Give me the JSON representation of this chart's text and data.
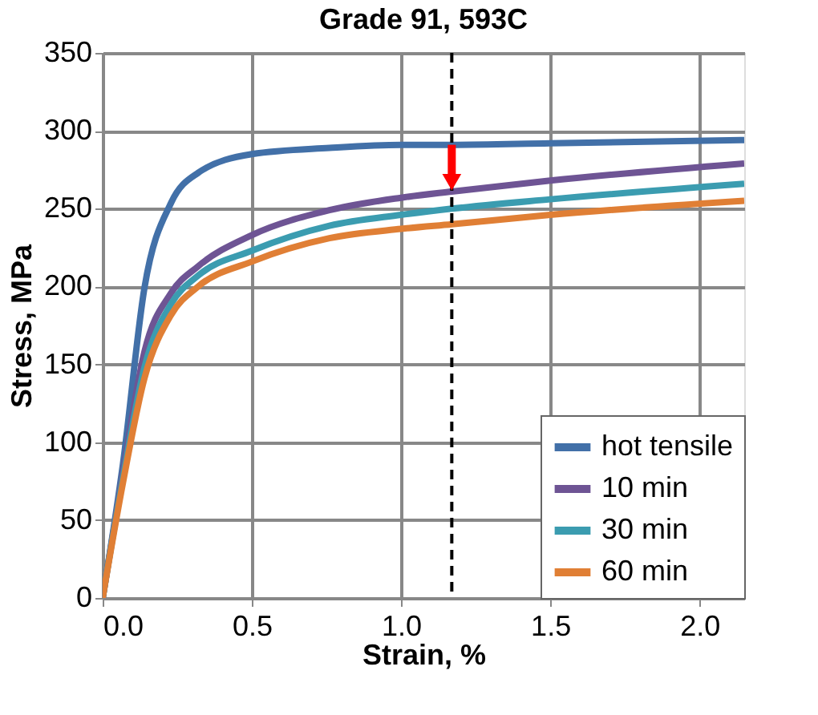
{
  "chart_data": {
    "type": "line",
    "title": "Grade 91, 593C",
    "xlabel": "Strain, %",
    "ylabel": "Stress, MPa",
    "x": [
      0,
      0.068,
      0.14,
      0.23,
      0.32,
      0.5,
      0.76,
      1.0,
      1.17,
      1.5,
      2.15
    ],
    "series": [
      {
        "name": "hot tensile",
        "color": "#4270a8",
        "values": [
          0,
          86,
          199,
          254,
          273,
          285,
          289,
          291,
          291,
          292,
          294
        ]
      },
      {
        "name": "10 min",
        "color": "#6e5494",
        "values": [
          0,
          80,
          158,
          196,
          213,
          233,
          249,
          257,
          261,
          268,
          279
        ]
      },
      {
        "name": "30 min",
        "color": "#3b9cb0",
        "values": [
          0,
          77,
          148,
          189,
          207,
          223,
          239,
          246,
          250,
          256,
          266
        ]
      },
      {
        "name": "60 min",
        "color": "#e07f35",
        "values": [
          0,
          74,
          141,
          182,
          200,
          216,
          231,
          237,
          240,
          246,
          255
        ]
      }
    ],
    "xlim": [
      0,
      2.15
    ],
    "xticks": [
      {
        "value": 0,
        "label": "0.0"
      },
      0.5,
      {
        "value": 1,
        "label": "1.0"
      },
      1.5,
      {
        "value": 2,
        "label": "2.0"
      }
    ],
    "ylim": [
      0,
      350
    ],
    "yticks": [
      0,
      50,
      100,
      150,
      200,
      250,
      300,
      350
    ],
    "ref_lines": [
      {
        "axis": "x",
        "value": 1.17,
        "color": "#000000",
        "line_style": "dashed"
      }
    ],
    "grid": true,
    "legend": "bottom right",
    "marker": "none",
    "line_style": "solid"
  }
}
